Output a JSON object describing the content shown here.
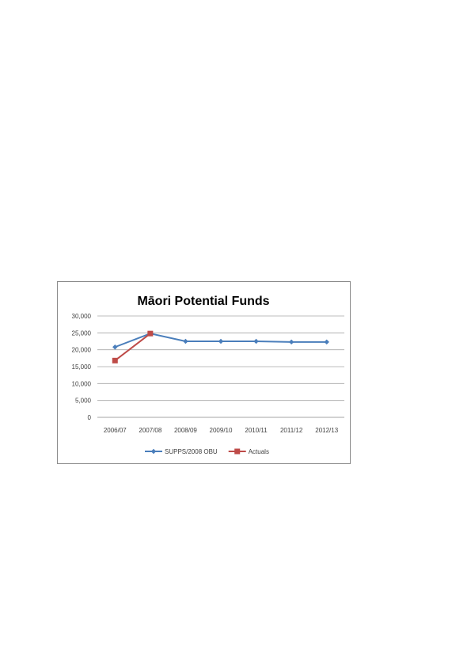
{
  "chart_data": {
    "type": "line",
    "title": "Māori Potential Funds",
    "xlabel": "",
    "ylabel": "",
    "categories": [
      "2006/07",
      "2007/08",
      "2008/09",
      "2009/10",
      "2010/11",
      "2011/12",
      "2012/13"
    ],
    "y_ticks": [
      "0",
      "5,000",
      "10,000",
      "15,000",
      "20,000",
      "25,000",
      "30,000"
    ],
    "ylim": [
      0,
      30000
    ],
    "grid": true,
    "legend_position": "bottom",
    "series": [
      {
        "name": "SUPPS/2008 OBU",
        "color": "#4a7ebb",
        "marker": "diamond",
        "values": [
          20800,
          24800,
          22500,
          22500,
          22500,
          22300,
          22300
        ]
      },
      {
        "name": "Actuals",
        "color": "#be4b48",
        "marker": "square",
        "values": [
          16800,
          24800,
          null,
          null,
          null,
          null,
          null
        ]
      }
    ]
  }
}
